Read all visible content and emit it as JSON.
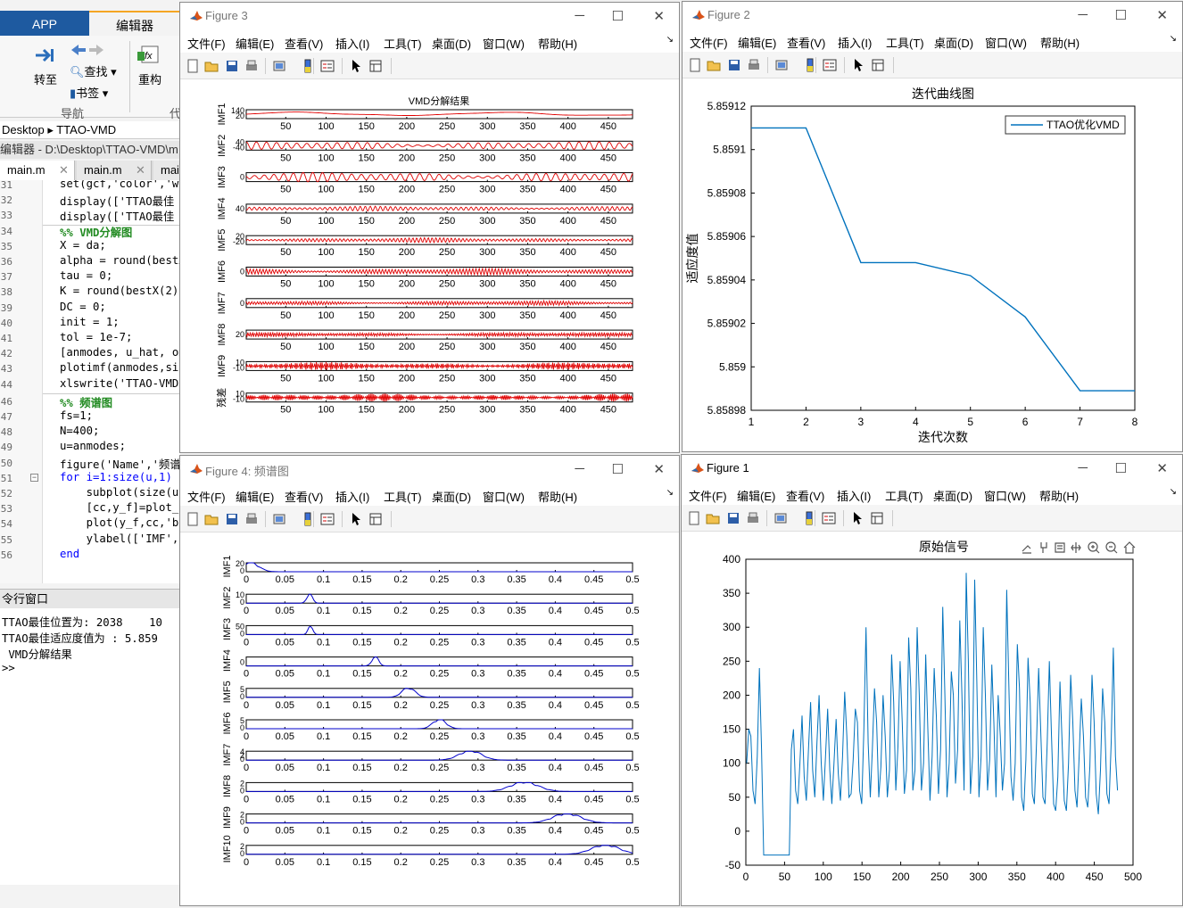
{
  "matlab": {
    "tab_app": "APP",
    "tab_editor": "编辑器",
    "ribbon": {
      "goto": "转至",
      "find": "查找",
      "bookmark": "书签",
      "refactor": "重构",
      "nav_group": "导航",
      "code_group": "代"
    },
    "address": {
      "root": "Desktop",
      "folder": "TTAO-VMD"
    },
    "editor_path": "编辑器 - D:\\Desktop\\TTAO-VMD\\m",
    "editor_tabs": [
      "main.m",
      "main.m",
      "mai"
    ],
    "code_lines": [
      {
        "n": "31",
        "text": "set(gcf,'color','w"
      },
      {
        "n": "32",
        "text": "display(['TTAO最佳"
      },
      {
        "n": "33",
        "text": "display(['TTAO最佳"
      },
      {
        "n": "34",
        "text": "%% VMD分解图"
      },
      {
        "n": "35",
        "text": "X = da;"
      },
      {
        "n": "36",
        "text": "alpha = round(bestX"
      },
      {
        "n": "37",
        "text": "tau = 0;"
      },
      {
        "n": "38",
        "text": "K = round(bestX(2)"
      },
      {
        "n": "39",
        "text": "DC = 0;"
      },
      {
        "n": "40",
        "text": "init = 1;"
      },
      {
        "n": "41",
        "text": "tol = 1e-7;"
      },
      {
        "n": "42",
        "text": "[anmodes, u_hat, om"
      },
      {
        "n": "43",
        "text": "plotimf(anmodes,siz"
      },
      {
        "n": "44",
        "text": "xlswrite('TTAO-VMD"
      },
      {
        "n": "46",
        "text": "%% 频谱图"
      },
      {
        "n": "47",
        "text": "fs=1;"
      },
      {
        "n": "48",
        "text": "N=400;"
      },
      {
        "n": "49",
        "text": "u=anmodes;"
      },
      {
        "n": "50",
        "text": "figure('Name','频谱"
      },
      {
        "n": "51",
        "text": "for i=1:size(u,1)"
      },
      {
        "n": "52",
        "text": "    subplot(size(u"
      },
      {
        "n": "53",
        "text": "    [cc,y_f]=plot_"
      },
      {
        "n": "54",
        "text": "    plot(y_f,cc,'b"
      },
      {
        "n": "55",
        "text": "    ylabel(['IMF',"
      },
      {
        "n": "56",
        "text": "end"
      }
    ],
    "cmd_title": "令行窗口",
    "cmd_lines": [
      "TTAO最佳位置为: 2038    10",
      "TTAO最佳适应度值为 : 5.859",
      " VMD分解结果",
      ">>"
    ]
  },
  "menu_items": [
    "文件(F)",
    "编辑(E)",
    "查看(V)",
    "插入(I)",
    "工具(T)",
    "桌面(D)",
    "窗口(W)",
    "帮助(H)"
  ],
  "figures": {
    "fig3": {
      "title": "Figure 3",
      "plot_title": "VMD分解结果",
      "color": "#e00000"
    },
    "fig2": {
      "title": "Figure 2",
      "plot_title": "迭代曲线图",
      "xlabel": "迭代次数",
      "ylabel": "适应度值",
      "legend": "TTAO优化VMD",
      "color": "#0072bd"
    },
    "fig4": {
      "title": "Figure 4: 频谱图",
      "color": "#0000cc"
    },
    "fig1": {
      "title": "Figure 1",
      "plot_title": "原始信号",
      "color": "#0072bd"
    }
  },
  "chart_data": [
    {
      "id": "vmd_decomposition",
      "type": "line",
      "title": "VMD分解结果",
      "xticks": [
        50,
        100,
        150,
        200,
        250,
        300,
        350,
        400,
        450
      ],
      "xlim": [
        1,
        480
      ],
      "rows": [
        {
          "label": "IMF1",
          "yticks": [
            "140",
            "20"
          ],
          "freq": 0.004,
          "amp": 0.3
        },
        {
          "label": "IMF2",
          "yticks": [
            "40",
            "-40"
          ],
          "freq": 0.08,
          "amp": 0.5
        },
        {
          "label": "IMF3",
          "yticks": [
            "0"
          ],
          "freq": 0.083,
          "amp": 0.6
        },
        {
          "label": "IMF4",
          "yticks": [
            "40"
          ],
          "freq": 0.16,
          "amp": 0.3
        },
        {
          "label": "IMF5",
          "yticks": [
            "20",
            "-20"
          ],
          "freq": 0.21,
          "amp": 0.3
        },
        {
          "label": "IMF6",
          "yticks": [
            "0"
          ],
          "freq": 0.25,
          "amp": 0.4
        },
        {
          "label": "IMF7",
          "yticks": [
            "0"
          ],
          "freq": 0.29,
          "amp": 0.3
        },
        {
          "label": "IMF8",
          "yticks": [
            "20"
          ],
          "freq": 0.36,
          "amp": 0.3
        },
        {
          "label": "IMF9",
          "yticks": [
            "10",
            "-10"
          ],
          "freq": 0.42,
          "amp": 0.5
        },
        {
          "label": "残差",
          "yticks": [
            "10",
            "-10"
          ],
          "freq": 0.47,
          "amp": 0.5
        }
      ]
    },
    {
      "id": "iteration_curve",
      "type": "line",
      "title": "迭代曲线图",
      "xlabel": "迭代次数",
      "ylabel": "适应度值",
      "legend": "TTAO优化VMD",
      "x": [
        1,
        2,
        3,
        4,
        5,
        6,
        7,
        8
      ],
      "y": [
        5.85911,
        5.85911,
        5.859048,
        5.859048,
        5.859042,
        5.859023,
        5.858989,
        5.858989
      ],
      "xlim": [
        1,
        8
      ],
      "ylim": [
        5.85898,
        5.85912
      ],
      "yticks": [
        "5.85898",
        "5.859",
        "5.85902",
        "5.85904",
        "5.85906",
        "5.85908",
        "5.8591",
        "5.85912"
      ]
    },
    {
      "id": "spectrum",
      "type": "line",
      "xticks": [
        "0",
        "0.05",
        "0.1",
        "0.15",
        "0.2",
        "0.25",
        "0.3",
        "0.35",
        "0.4",
        "0.45",
        "0.5"
      ],
      "xlim": [
        0,
        0.5
      ],
      "rows": [
        {
          "label": "IMF1",
          "yticks": [
            "20",
            "0"
          ],
          "peak": 0.005,
          "width": 0.015
        },
        {
          "label": "IMF2",
          "yticks": [
            "10",
            "0"
          ],
          "peak": 0.082,
          "width": 0.005
        },
        {
          "label": "IMF3",
          "yticks": [
            "50",
            "0"
          ],
          "peak": 0.083,
          "width": 0.004
        },
        {
          "label": "IMF4",
          "yticks": [
            "0"
          ],
          "peak": 0.167,
          "width": 0.006
        },
        {
          "label": "IMF5",
          "yticks": [
            "5",
            "0"
          ],
          "peak": 0.21,
          "width": 0.012
        },
        {
          "label": "IMF6",
          "yticks": [
            "5",
            "0"
          ],
          "peak": 0.25,
          "width": 0.012
        },
        {
          "label": "IMF7",
          "yticks": [
            "4",
            "2",
            "0"
          ],
          "peak": 0.29,
          "width": 0.02
        },
        {
          "label": "IMF8",
          "yticks": [
            "2",
            "0"
          ],
          "peak": 0.36,
          "width": 0.025
        },
        {
          "label": "IMF9",
          "yticks": [
            "2",
            "0"
          ],
          "peak": 0.415,
          "width": 0.025
        },
        {
          "label": "IMF10",
          "yticks": [
            "2",
            "0"
          ],
          "peak": 0.465,
          "width": 0.025
        }
      ]
    },
    {
      "id": "original_signal",
      "type": "line",
      "title": "原始信号",
      "xlim": [
        0,
        500
      ],
      "ylim": [
        -50,
        400
      ],
      "xticks": [
        "0",
        "50",
        "100",
        "150",
        "200",
        "250",
        "300",
        "350",
        "400",
        "450",
        "500"
      ],
      "yticks": [
        "-50",
        "0",
        "50",
        "100",
        "150",
        "200",
        "250",
        "300",
        "350",
        "400"
      ],
      "y": [
        100,
        150,
        140,
        60,
        40,
        110,
        240,
        120,
        -35,
        -35,
        -35,
        -35,
        -35,
        -35,
        -35,
        -35,
        -35,
        -35,
        -35,
        -35,
        -35,
        120,
        150,
        60,
        40,
        100,
        170,
        80,
        45,
        120,
        190,
        90,
        50,
        130,
        200,
        100,
        45,
        110,
        180,
        90,
        40,
        100,
        165,
        85,
        45,
        110,
        205,
        140,
        50,
        55,
        105,
        180,
        160,
        60,
        40,
        150,
        300,
        130,
        50,
        120,
        210,
        160,
        50,
        95,
        200,
        140,
        50,
        90,
        260,
        190,
        60,
        125,
        250,
        160,
        55,
        90,
        285,
        210,
        60,
        90,
        300,
        200,
        60,
        100,
        260,
        150,
        45,
        110,
        240,
        170,
        55,
        120,
        330,
        200,
        50,
        100,
        235,
        200,
        70,
        120,
        310,
        200,
        60,
        380,
        250,
        55,
        110,
        370,
        220,
        50,
        110,
        300,
        200,
        60,
        105,
        245,
        160,
        50,
        200,
        140,
        60,
        100,
        355,
        215,
        80,
        45,
        100,
        275,
        210,
        50,
        30,
        105,
        255,
        190,
        55,
        40,
        130,
        240,
        145,
        50,
        40,
        130,
        250,
        140,
        40,
        30,
        80,
        220,
        130,
        45,
        30,
        100,
        230,
        160,
        60,
        35,
        110,
        195,
        140,
        50,
        35,
        95,
        230,
        160,
        55,
        25,
        90,
        210,
        160,
        55,
        40,
        130,
        270,
        110,
        60
      ]
    }
  ]
}
